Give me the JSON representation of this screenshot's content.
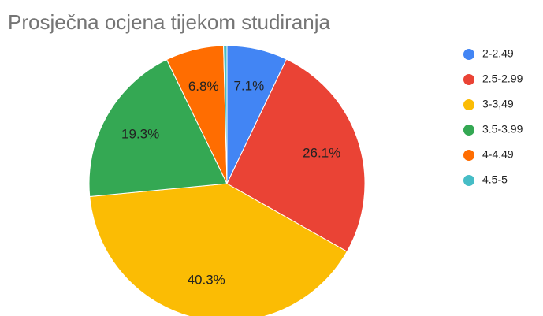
{
  "chart_data": {
    "type": "pie",
    "title": "Prosječna ocjena tijekom studiranja",
    "categories": [
      "2-2.49",
      "2.5-2.99",
      "3-3,49",
      "3.5-3.99",
      "4-4.49",
      "4.5-5"
    ],
    "values": [
      7.1,
      26.1,
      40.3,
      19.3,
      6.8,
      0.4
    ],
    "value_labels": [
      "7.1%",
      "26.1%",
      "40.3%",
      "19.3%",
      "6.8%",
      null
    ],
    "colors": [
      "#4285f4",
      "#ea4335",
      "#fbbc04",
      "#34a853",
      "#ff6d01",
      "#46bdc6"
    ],
    "legend": "right"
  }
}
